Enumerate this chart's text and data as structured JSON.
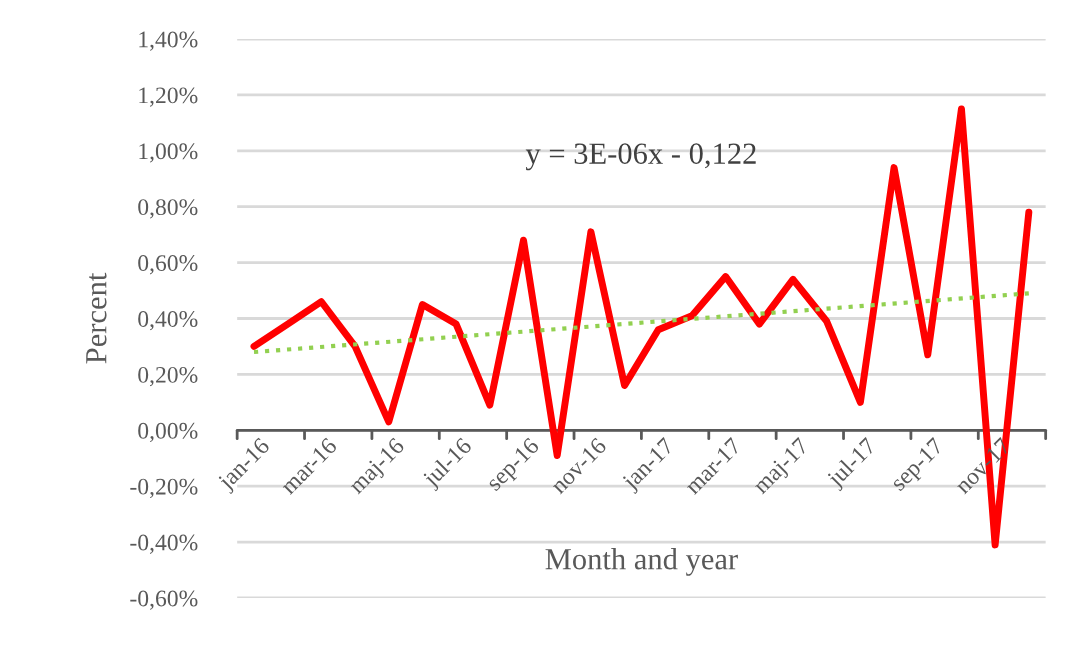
{
  "chart_data": {
    "type": "line",
    "xlabel": "Month and year",
    "ylabel": "Percent",
    "categories": [
      "jan-16",
      null,
      "mar-16",
      null,
      "maj-16",
      null,
      "jul-16",
      null,
      "sep-16",
      null,
      "nov-16",
      null,
      "jan-17",
      null,
      "mar-17",
      null,
      "maj-17",
      null,
      "jul-17",
      null,
      "sep-17",
      null,
      "nov-17",
      null
    ],
    "series": [
      {
        "color": "#ff0000",
        "line_style": "solid",
        "values": [
          0.3,
          0.38,
          0.46,
          0.3,
          0.03,
          0.45,
          0.38,
          0.09,
          0.68,
          -0.09,
          0.71,
          0.16,
          0.36,
          0.41,
          0.55,
          0.38,
          0.54,
          0.39,
          0.1,
          0.94,
          0.27,
          1.15,
          -0.41,
          0.78
        ]
      },
      {
        "color": "#92d050",
        "line_style": "dotted",
        "values": [
          0.28,
          null,
          null,
          null,
          null,
          null,
          null,
          null,
          null,
          null,
          null,
          null,
          null,
          null,
          null,
          null,
          null,
          null,
          null,
          null,
          null,
          null,
          null,
          0.49
        ]
      }
    ],
    "ylim": [
      -0.6,
      1.4
    ],
    "yticks": [
      {
        "value": -0.6,
        "label": "-0,60%"
      },
      {
        "value": -0.4,
        "label": "-0,40%"
      },
      {
        "value": -0.2,
        "label": "-0,20%"
      },
      {
        "value": 0,
        "label": "0,00%"
      },
      {
        "value": 0.2,
        "label": "0,20%"
      },
      {
        "value": 0.4,
        "label": "0,40%"
      },
      {
        "value": 0.6,
        "label": "0,60%"
      },
      {
        "value": 0.8,
        "label": "0,80%"
      },
      {
        "value": 1.0,
        "label": "1,00%"
      },
      {
        "value": 1.2,
        "label": "1,20%"
      },
      {
        "value": 1.4,
        "label": "1,40%"
      }
    ],
    "grid": "y",
    "annotations": [
      "y = 3E-06x - 0,122"
    ]
  }
}
